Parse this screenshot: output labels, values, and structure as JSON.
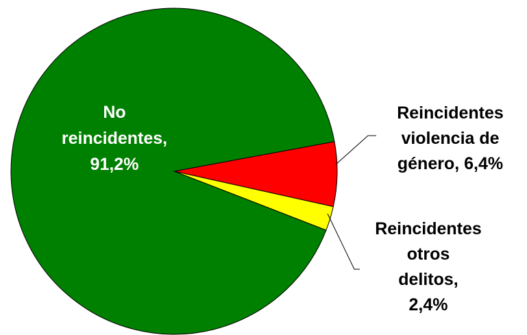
{
  "chart_data": {
    "type": "pie",
    "slices": [
      {
        "label_lines": [
          "No",
          "reincidentes,",
          "91,2%"
        ],
        "value": 91.2,
        "color": "#008000",
        "label_color": "#ffffff"
      },
      {
        "label_lines": [
          "Reincidentes",
          "violencia de",
          "género, 6,4%"
        ],
        "value": 6.4,
        "color": "#ff0000",
        "label_color": "#000000"
      },
      {
        "label_lines": [
          "Reincidentes",
          "otros",
          "delitos,",
          "2,4%"
        ],
        "value": 2.4,
        "color": "#ffff00",
        "label_color": "#000000"
      }
    ],
    "title": "",
    "legend": "none"
  }
}
